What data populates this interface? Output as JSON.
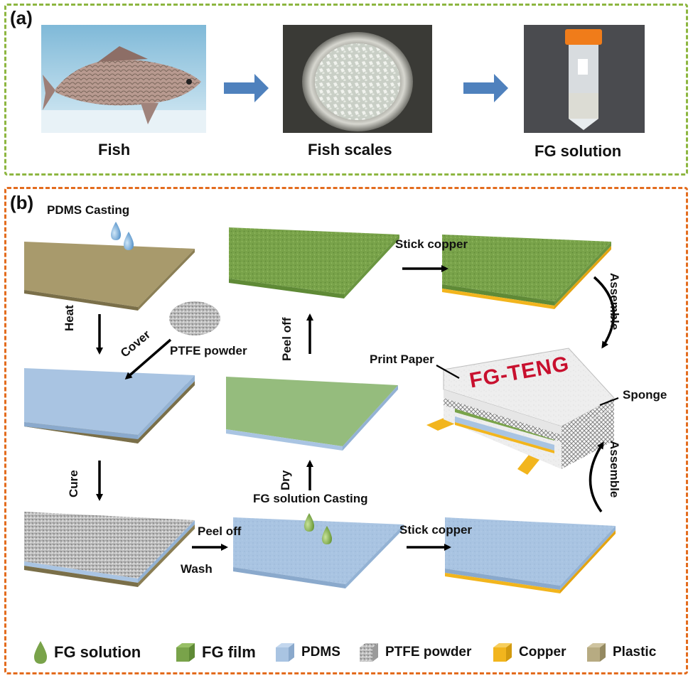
{
  "panel_a": {
    "label": "(a)",
    "steps": [
      {
        "caption": "Fish",
        "photo_icon": "fish-photo"
      },
      {
        "caption": "Fish scales",
        "photo_icon": "fish-scales-bowl-photo"
      },
      {
        "caption": "FG solution",
        "photo_icon": "centrifuge-tube-photo"
      }
    ],
    "arrow_color": "#4f81bd"
  },
  "panel_b": {
    "label": "(b)",
    "labels": {
      "pdms_casting": "PDMS Casting",
      "heat": "Heat",
      "cover": "Cover",
      "ptfe_powder": "PTFE powder",
      "cure": "Cure",
      "peel_off_wash_top": "Peel off",
      "wash": "Wash",
      "fg_solution_casting": "FG solution Casting",
      "dry": "Dry",
      "peel_off_vertical": "Peel off",
      "stick_copper_top": "Stick copper",
      "stick_copper_bottom": "Stick copper",
      "assemble_top": "Assemble",
      "assemble_bottom": "Assemble",
      "print_paper": "Print Paper",
      "sponge": "Sponge",
      "device_title": "FG-TENG"
    },
    "legend": [
      {
        "label": "FG solution",
        "icon": "fg-solution-drop-icon"
      },
      {
        "label": "FG film",
        "icon": "fg-film-cube-icon"
      },
      {
        "label": "PDMS",
        "icon": "pdms-cube-icon"
      },
      {
        "label": "PTFE powder",
        "icon": "ptfe-cube-icon"
      },
      {
        "label": "Copper",
        "icon": "copper-cube-icon"
      },
      {
        "label": "Plastic",
        "icon": "plastic-cube-icon"
      }
    ]
  },
  "colors": {
    "panel_a_border": "#8db640",
    "panel_b_border": "#e36c1e",
    "plastic": "#a89a6c",
    "pdms": "#a9c4e2",
    "fg_film": "#79a34a",
    "copper": "#f2b51d",
    "ptfe": "#c8c8c8",
    "device_title": "#c8102e"
  }
}
